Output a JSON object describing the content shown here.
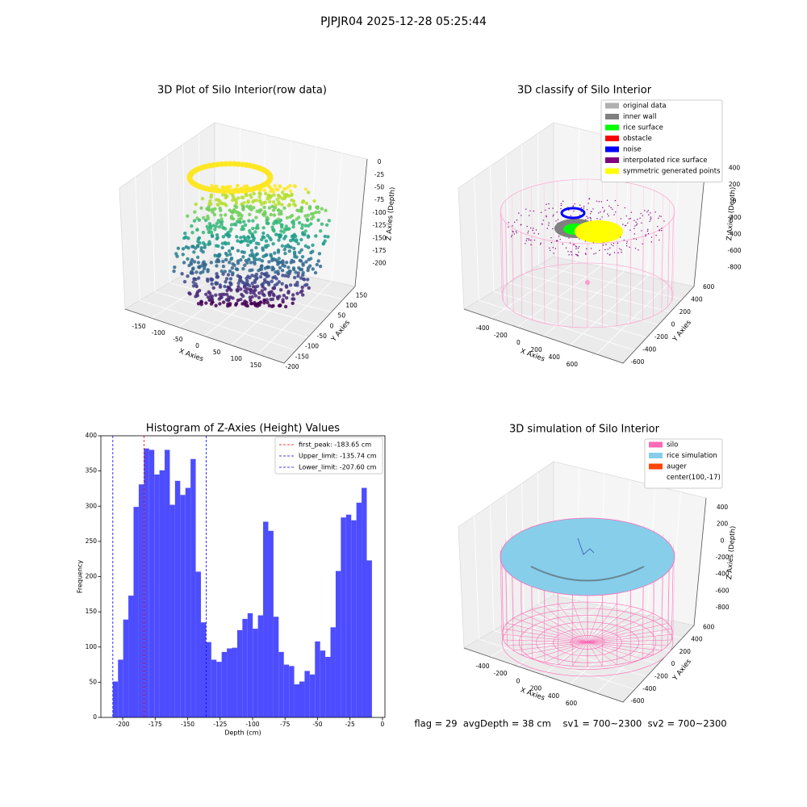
{
  "suptitle": "PJPJR04 2025-12-28 05:25:44",
  "footer": "flag = 29  avgDepth = 38 cm    sv1 = 700~2300  sv2 = 700~2300",
  "chart_data": [
    {
      "type": "scatter3d",
      "title": "3D Plot of Silo Interior(row data)",
      "xlabel": "X Axies",
      "ylabel": "Y Axies",
      "zlabel": "Z Axies (Depth)",
      "colormap": "viridis",
      "xlim": [
        -175,
        175
      ],
      "xticks": [
        -150,
        -100,
        -50,
        0,
        50,
        100,
        150
      ],
      "ylim": [
        -200,
        175
      ],
      "yticks": [
        -200,
        -150,
        -100,
        -50,
        0,
        50,
        100,
        150
      ],
      "zlim": [
        -210,
        5
      ],
      "zticks": [
        0,
        -25,
        -50,
        -75,
        -100,
        -125,
        -150,
        -175,
        -200
      ]
    },
    {
      "type": "scatter3d",
      "title": "3D classify of Silo Interior",
      "xlabel": "X Axies",
      "ylabel": "Y Axies",
      "zlabel": "Z Axies (Depth)",
      "xlim": [
        -500,
        700
      ],
      "xticks": [
        -400,
        -200,
        0,
        200,
        400,
        600
      ],
      "ylim": [
        -700,
        700
      ],
      "yticks": [
        -600,
        -400,
        -200,
        0,
        200,
        400,
        600
      ],
      "zlim": [
        -900,
        450
      ],
      "zticks": [
        400,
        200,
        0,
        -200,
        -400,
        -600,
        -800
      ],
      "legend_loc": "upper right",
      "legend": [
        {
          "name": "original data",
          "color": "#b0b0b0"
        },
        {
          "name": "inner wall",
          "color": "#808080"
        },
        {
          "name": "rice surface",
          "color": "#00ff00"
        },
        {
          "name": "obstacle",
          "color": "#ff0000"
        },
        {
          "name": "noise",
          "color": "#0000ff"
        },
        {
          "name": "interpolated rice surface",
          "color": "#800080"
        },
        {
          "name": "symmetric generated points",
          "color": "#ffff00"
        }
      ]
    },
    {
      "type": "histogram",
      "title": "Histogram of Z-Axies (Height) Values",
      "xlabel": "Depth (cm)",
      "ylabel": "Frequency",
      "color": "#4d4dff",
      "bins": [
        -207.6,
        -203.61,
        -199.62,
        -195.63,
        -191.64,
        -187.65,
        -183.66,
        -179.67,
        -175.68,
        -171.69,
        -167.7,
        -163.71,
        -159.72,
        -155.73,
        -151.74,
        -147.75,
        -143.76,
        -139.77,
        -135.78,
        -131.79,
        -127.8,
        -123.81,
        -119.82,
        -115.83,
        -111.84,
        -107.85,
        -103.86,
        -99.87,
        -95.88,
        -91.89,
        -87.9,
        -83.91,
        -79.92,
        -75.93,
        -71.94,
        -67.95,
        -63.96,
        -59.97,
        -55.98,
        -51.99,
        -48.0,
        -44.01,
        -40.02,
        -36.03,
        -32.04,
        -28.05,
        -24.06,
        -20.07,
        -16.08,
        -12.09,
        -8.1
      ],
      "values": [
        51,
        82,
        139,
        173,
        299,
        331,
        382,
        380,
        345,
        351,
        380,
        302,
        336,
        316,
        326,
        367,
        207,
        135,
        107,
        82,
        79,
        93,
        98,
        99,
        124,
        140,
        148,
        126,
        145,
        278,
        265,
        143,
        93,
        75,
        73,
        47,
        51,
        66,
        61,
        108,
        95,
        86,
        128,
        208,
        284,
        288,
        280,
        305,
        326,
        223
      ],
      "xlim": [
        -216.8,
        1.9
      ],
      "xticks": [
        -200,
        -175,
        -150,
        -125,
        -100,
        -75,
        -50,
        -25,
        0
      ],
      "ylim": [
        0,
        400
      ],
      "yticks": [
        0,
        50,
        100,
        150,
        200,
        250,
        300,
        350,
        400
      ],
      "legend_loc": "upper right",
      "vlines": [
        {
          "label": "first_peak: -183.65 cm",
          "value": -183.65,
          "color": "#ff0000"
        },
        {
          "label": "Upper_limit: -135.74 cm",
          "value": -135.74,
          "color": "#0000ff"
        },
        {
          "label": "Lower_limit: -207.60 cm",
          "value": -207.6,
          "color": "#0000ff"
        }
      ]
    },
    {
      "type": "scatter3d",
      "title": "3D simulation of Silo Interior",
      "xlabel": "X Axies",
      "ylabel": "Y Axies",
      "zlabel": "Z Axies (Depth)",
      "xlim": [
        -500,
        700
      ],
      "xticks": [
        -400,
        -200,
        0,
        200,
        400,
        600
      ],
      "ylim": [
        -700,
        700
      ],
      "yticks": [
        -600,
        -400,
        -200,
        0,
        200,
        400,
        600
      ],
      "zlim": [
        -900,
        450
      ],
      "zticks": [
        400,
        200,
        0,
        -200,
        -400,
        -600,
        -800
      ],
      "legend_loc": "upper right",
      "legend": [
        {
          "name": "silo",
          "color": "#ff69b4"
        },
        {
          "name": "rice simulation",
          "color": "#87ceeb"
        },
        {
          "name": "auger",
          "color": "#ff4500"
        },
        {
          "name": "center(100,-17)",
          "color": "#ffffff"
        }
      ]
    }
  ]
}
